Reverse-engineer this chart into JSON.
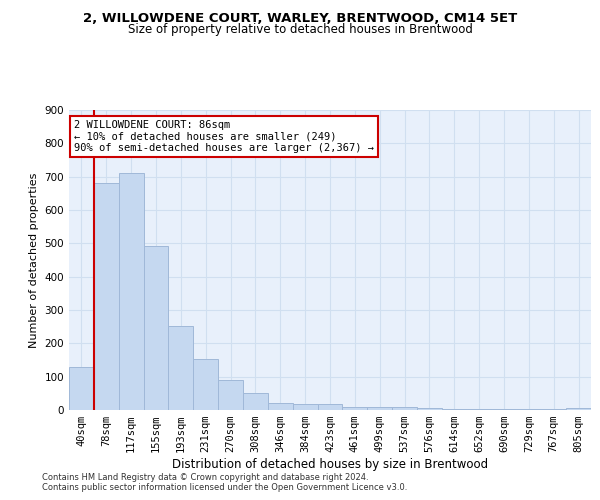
{
  "title": "2, WILLOWDENE COURT, WARLEY, BRENTWOOD, CM14 5ET",
  "subtitle": "Size of property relative to detached houses in Brentwood",
  "xlabel": "Distribution of detached houses by size in Brentwood",
  "ylabel": "Number of detached properties",
  "categories": [
    "40sqm",
    "78sqm",
    "117sqm",
    "155sqm",
    "193sqm",
    "231sqm",
    "270sqm",
    "308sqm",
    "346sqm",
    "384sqm",
    "423sqm",
    "461sqm",
    "499sqm",
    "537sqm",
    "576sqm",
    "614sqm",
    "652sqm",
    "690sqm",
    "729sqm",
    "767sqm",
    "805sqm"
  ],
  "values": [
    130,
    680,
    710,
    493,
    253,
    153,
    90,
    52,
    22,
    18,
    18,
    10,
    10,
    8,
    5,
    3,
    3,
    3,
    3,
    3,
    7
  ],
  "bar_color": "#c5d8f0",
  "bar_edge_color": "#a0b8d8",
  "vline_x": 0.5,
  "vline_color": "#cc0000",
  "annotation_text": "2 WILLOWDENE COURT: 86sqm\n← 10% of detached houses are smaller (249)\n90% of semi-detached houses are larger (2,367) →",
  "annotation_box_color": "#ffffff",
  "annotation_box_edge": "#cc0000",
  "ylim": [
    0,
    900
  ],
  "yticks": [
    0,
    100,
    200,
    300,
    400,
    500,
    600,
    700,
    800,
    900
  ],
  "grid_color": "#d0dff0",
  "bg_color": "#e8f0fb",
  "footer1": "Contains HM Land Registry data © Crown copyright and database right 2024.",
  "footer2": "Contains public sector information licensed under the Open Government Licence v3.0.",
  "title_fontsize": 9.5,
  "subtitle_fontsize": 8.5,
  "ylabel_fontsize": 8,
  "xlabel_fontsize": 8.5,
  "tick_fontsize": 7.5,
  "annot_fontsize": 7.5,
  "footer_fontsize": 6.0
}
